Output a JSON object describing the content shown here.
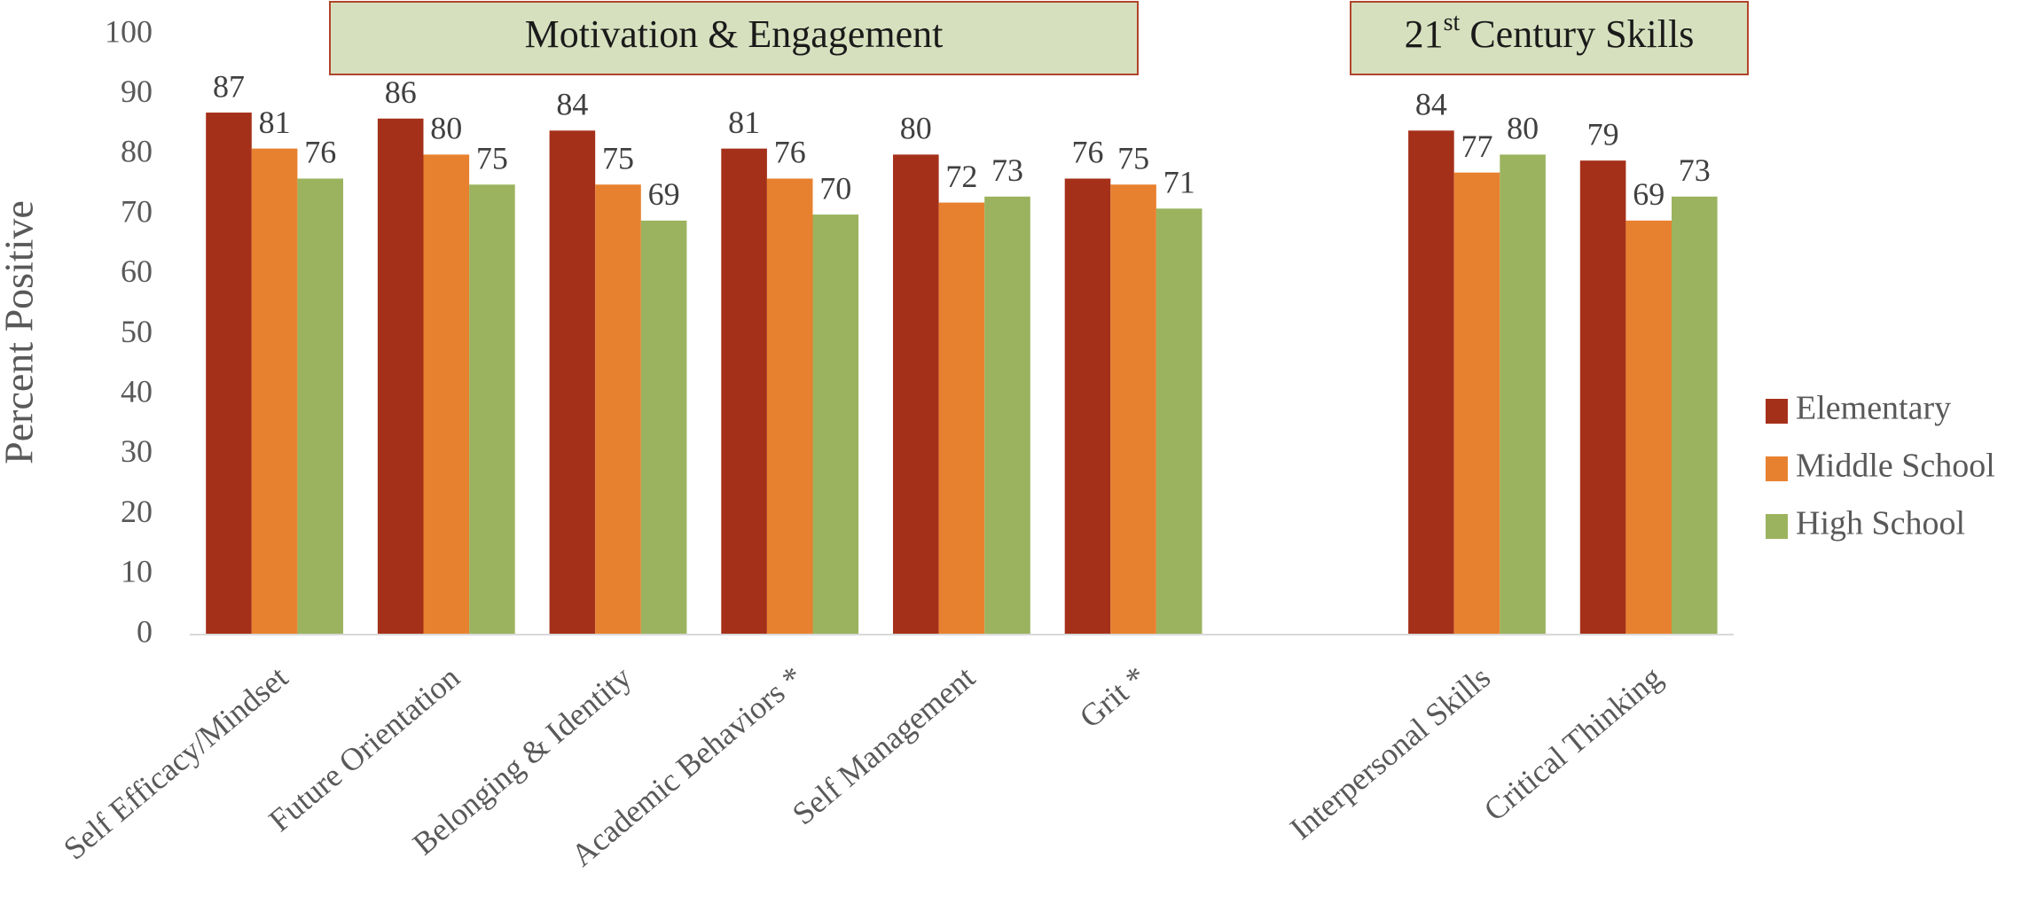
{
  "chart_data": {
    "type": "bar",
    "y_axis_label": "Percent Positive",
    "group_labels": [
      {
        "parts": [
          "Motivation & Engagement"
        ],
        "span": [
          0,
          5
        ]
      },
      {
        "parts": [
          "21",
          "st",
          " Century Skills"
        ],
        "span": [
          7,
          8
        ]
      }
    ],
    "categories": [
      "Self Efficacy/Mindset",
      "Future Orientation",
      "Belonging & Identity",
      "Academic Behaviors *",
      "Self Management",
      "Grit *",
      null,
      "Interpersonal Skills",
      "Critical Thinking"
    ],
    "series": [
      {
        "name": "Elementary",
        "color": "#a5301a",
        "values": [
          87,
          86,
          84,
          81,
          80,
          76,
          null,
          84,
          79
        ]
      },
      {
        "name": "Middle School",
        "color": "#e8812f",
        "values": [
          81,
          80,
          75,
          76,
          72,
          75,
          null,
          77,
          69
        ]
      },
      {
        "name": "High School",
        "color": "#9bb35e",
        "values": [
          76,
          75,
          69,
          70,
          73,
          71,
          null,
          80,
          73
        ]
      }
    ],
    "ylim": [
      0,
      100
    ],
    "yticks": [
      0,
      10,
      20,
      30,
      40,
      50,
      60,
      70,
      80,
      90,
      100
    ],
    "grid": false,
    "legend": "right"
  }
}
